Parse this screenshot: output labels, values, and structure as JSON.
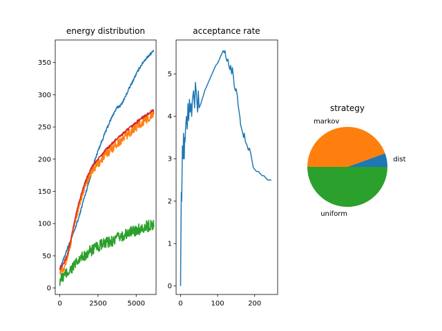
{
  "chart_data": [
    {
      "type": "line",
      "title": "energy distribution",
      "xlabel": "",
      "ylabel": "",
      "xlim": [
        -300,
        6300
      ],
      "ylim": [
        -10,
        385
      ],
      "xticks": [
        0,
        2500,
        5000
      ],
      "xtick_labels": [
        "0",
        "2500",
        "5000"
      ],
      "yticks": [
        0,
        50,
        100,
        150,
        200,
        250,
        300,
        350
      ],
      "ytick_labels": [
        "0",
        "50",
        "100",
        "150",
        "200",
        "250",
        "300",
        "350"
      ],
      "grid": false,
      "series": [
        {
          "color": "#1f77b4",
          "noise": 2,
          "points": [
            [
              0,
              30
            ],
            [
              250,
              45
            ],
            [
              500,
              62
            ],
            [
              750,
              76
            ],
            [
              1000,
              92
            ],
            [
              1250,
              110
            ],
            [
              1500,
              132
            ],
            [
              1750,
              152
            ],
            [
              2000,
              173
            ],
            [
              2250,
              195
            ],
            [
              2500,
              213
            ],
            [
              2750,
              228
            ],
            [
              3000,
              243
            ],
            [
              3250,
              257
            ],
            [
              3500,
              270
            ],
            [
              3750,
              280
            ],
            [
              4000,
              284
            ],
            [
              4250,
              295
            ],
            [
              4500,
              308
            ],
            [
              4750,
              320
            ],
            [
              5000,
              332
            ],
            [
              5250,
              343
            ],
            [
              5500,
              352
            ],
            [
              5750,
              359
            ],
            [
              6000,
              365
            ],
            [
              6150,
              368
            ]
          ]
        },
        {
          "color": "#ff7f0e",
          "noise": 7,
          "points": [
            [
              0,
              28
            ],
            [
              250,
              33
            ],
            [
              500,
              48
            ],
            [
              750,
              75
            ],
            [
              1000,
              103
            ],
            [
              1250,
              128
            ],
            [
              1500,
              148
            ],
            [
              1750,
              165
            ],
            [
              2000,
              178
            ],
            [
              2250,
              186
            ],
            [
              2500,
              193
            ],
            [
              2750,
              200
            ],
            [
              3000,
              207
            ],
            [
              3250,
              213
            ],
            [
              3500,
              219
            ],
            [
              3750,
              225
            ],
            [
              4000,
              229
            ],
            [
              4250,
              234
            ],
            [
              4500,
              240
            ],
            [
              4750,
              245
            ],
            [
              5000,
              250
            ],
            [
              5250,
              255
            ],
            [
              5500,
              259
            ],
            [
              5750,
              263
            ],
            [
              6000,
              267
            ],
            [
              6150,
              270
            ]
          ]
        },
        {
          "color": "#d62728",
          "noise": 2,
          "points": [
            [
              0,
              30
            ],
            [
              250,
              38
            ],
            [
              500,
              52
            ],
            [
              750,
              78
            ],
            [
              1000,
              108
            ],
            [
              1250,
              133
            ],
            [
              1500,
              153
            ],
            [
              1750,
              170
            ],
            [
              2000,
              184
            ],
            [
              2250,
              193
            ],
            [
              2500,
              200
            ],
            [
              2750,
              207
            ],
            [
              3000,
              214
            ],
            [
              3250,
              220
            ],
            [
              3500,
              226
            ],
            [
              3750,
              232
            ],
            [
              4000,
              237
            ],
            [
              4250,
              242
            ],
            [
              4500,
              247
            ],
            [
              4750,
              252
            ],
            [
              5000,
              257
            ],
            [
              5250,
              262
            ],
            [
              5500,
              266
            ],
            [
              5750,
              270
            ],
            [
              6000,
              274
            ],
            [
              6150,
              276
            ]
          ]
        },
        {
          "color": "#2ca02c",
          "noise": 9,
          "points": [
            [
              0,
              12
            ],
            [
              250,
              18
            ],
            [
              500,
              24
            ],
            [
              750,
              30
            ],
            [
              1000,
              36
            ],
            [
              1250,
              42
            ],
            [
              1500,
              48
            ],
            [
              1750,
              53
            ],
            [
              2000,
              57
            ],
            [
              2250,
              61
            ],
            [
              2500,
              64
            ],
            [
              2750,
              67
            ],
            [
              3000,
              69
            ],
            [
              3250,
              72
            ],
            [
              3500,
              74
            ],
            [
              3750,
              77
            ],
            [
              4000,
              80
            ],
            [
              4250,
              82
            ],
            [
              4500,
              85
            ],
            [
              4750,
              88
            ],
            [
              5000,
              90
            ],
            [
              5250,
              92
            ],
            [
              5500,
              94
            ],
            [
              5750,
              96
            ],
            [
              6000,
              98
            ],
            [
              6150,
              99
            ]
          ]
        }
      ]
    },
    {
      "type": "line",
      "title": "acceptance rate",
      "xlabel": "",
      "ylabel": "",
      "xlim": [
        -12,
        262
      ],
      "ylim": [
        -0.2,
        5.8
      ],
      "xticks": [
        0,
        100,
        200
      ],
      "xtick_labels": [
        "0",
        "100",
        "200"
      ],
      "yticks": [
        0,
        1,
        2,
        3,
        4,
        5
      ],
      "ytick_labels": [
        "0",
        "1",
        "2",
        "3",
        "4",
        "5"
      ],
      "grid": false,
      "series": [
        {
          "color": "#1f77b4",
          "points": [
            [
              0,
              0
            ],
            [
              1,
              1.2
            ],
            [
              2,
              2.2
            ],
            [
              3,
              2.0
            ],
            [
              4,
              2.6
            ],
            [
              5,
              3.3
            ],
            [
              6,
              3.2
            ],
            [
              7,
              3.0
            ],
            [
              8,
              3.6
            ],
            [
              9,
              3.3
            ],
            [
              10,
              3.0
            ],
            [
              11,
              3.5
            ],
            [
              12,
              3.4
            ],
            [
              14,
              3.8
            ],
            [
              16,
              4.0
            ],
            [
              18,
              3.7
            ],
            [
              20,
              4.3
            ],
            [
              22,
              3.9
            ],
            [
              24,
              4.4
            ],
            [
              26,
              4.1
            ],
            [
              28,
              4.3
            ],
            [
              30,
              4.0
            ],
            [
              32,
              4.4
            ],
            [
              35,
              4.6
            ],
            [
              38,
              4.2
            ],
            [
              40,
              4.8
            ],
            [
              43,
              4.5
            ],
            [
              46,
              4.1
            ],
            [
              48,
              4.6
            ],
            [
              50,
              4.2
            ],
            [
              55,
              4.3
            ],
            [
              58,
              4.4
            ],
            [
              62,
              4.5
            ],
            [
              65,
              4.6
            ],
            [
              70,
              4.7
            ],
            [
              75,
              4.8
            ],
            [
              80,
              4.9
            ],
            [
              85,
              5.0
            ],
            [
              90,
              5.1
            ],
            [
              95,
              5.2
            ],
            [
              100,
              5.25
            ],
            [
              105,
              5.35
            ],
            [
              110,
              5.45
            ],
            [
              115,
              5.55
            ],
            [
              118,
              5.5
            ],
            [
              120,
              5.55
            ],
            [
              122,
              5.4
            ],
            [
              125,
              5.3
            ],
            [
              128,
              5.35
            ],
            [
              130,
              5.2
            ],
            [
              133,
              5.1
            ],
            [
              135,
              5.2
            ],
            [
              138,
              5.0
            ],
            [
              140,
              5.15
            ],
            [
              143,
              4.9
            ],
            [
              145,
              4.7
            ],
            [
              148,
              4.6
            ],
            [
              150,
              4.65
            ],
            [
              153,
              4.5
            ],
            [
              155,
              4.3
            ],
            [
              158,
              4.1
            ],
            [
              160,
              4.0
            ],
            [
              162,
              3.8
            ],
            [
              165,
              3.7
            ],
            [
              168,
              3.6
            ],
            [
              170,
              3.5
            ],
            [
              172,
              3.6
            ],
            [
              175,
              3.4
            ],
            [
              178,
              3.35
            ],
            [
              180,
              3.3
            ],
            [
              183,
              3.2
            ],
            [
              186,
              3.25
            ],
            [
              190,
              3.1
            ],
            [
              193,
              2.95
            ],
            [
              196,
              2.8
            ],
            [
              200,
              2.75
            ],
            [
              205,
              2.7
            ],
            [
              210,
              2.7
            ],
            [
              215,
              2.65
            ],
            [
              220,
              2.6
            ],
            [
              225,
              2.6
            ],
            [
              230,
              2.55
            ],
            [
              235,
              2.5
            ],
            [
              240,
              2.5
            ],
            [
              245,
              2.5
            ]
          ]
        }
      ]
    },
    {
      "type": "pie",
      "title": "strategy",
      "labels": [
        "dist",
        "markov",
        "uniform"
      ],
      "values": [
        0.055,
        0.445,
        0.5
      ],
      "colors": [
        "#1f77b4",
        "#ff7f0e",
        "#2ca02c"
      ],
      "start_angle_deg": 0,
      "direction": "counterclockwise"
    }
  ]
}
